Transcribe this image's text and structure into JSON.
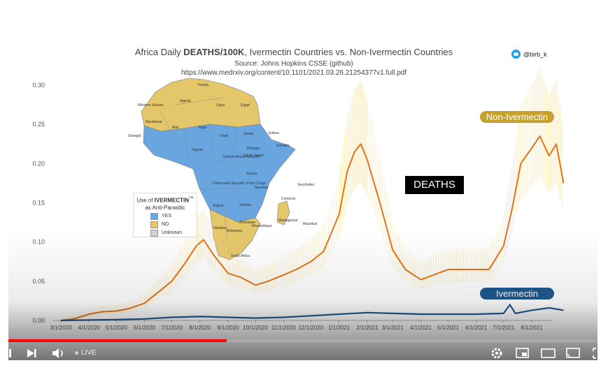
{
  "title_prefix": "Africa Daily ",
  "title_bold": "DEATHS/100K",
  "title_suffix": ", Ivermectin Countries vs. Non-Ivermectin Countries",
  "source": "Source: Johns Hopkins CSSE (github)",
  "url": "https://www.medrxiv.org/content/10.1101/2021.03.26.21254377v1.full.pdf",
  "handle": "@birb_k",
  "deaths_label": "DEATHS",
  "map_legend": {
    "title_prefix": "Use of ",
    "title_bold": "IVERMECTIN",
    "title_tm": "™",
    "title_line2": "as Anti-Parasitic",
    "items": [
      {
        "label": "YES",
        "color": "#69a6e0"
      },
      {
        "label": "NO",
        "color": "#e5c76b"
      },
      {
        "label": "Unknown",
        "color": "#d3d3d3"
      }
    ]
  },
  "map_labels": [
    "Tunisia",
    "Algeria",
    "Libya",
    "Egypt",
    "Western Sahara",
    "Mauritania",
    "Mali",
    "Niger",
    "Chad",
    "Sudan",
    "Eritrea",
    "Senegal",
    "Nigeria",
    "Ethiopia",
    "Somalia",
    "South Sudan",
    "Central African Republic",
    "Kenya",
    "Democratic Republic of the Congo",
    "Tanzania",
    "Angola",
    "Zambia",
    "Namibia",
    "Botswana",
    "Zimbabwe",
    "Mozambique",
    "Madagascar",
    "South Africa",
    "Seychelles",
    "Comoros",
    "Mauritius"
  ],
  "video": {
    "live_label": "LIVE",
    "progress": 0.37
  },
  "chart_data": {
    "type": "line",
    "title": "Africa Daily DEATHS/100K, Ivermectin Countries vs. Non-Ivermectin Countries",
    "xlabel": "",
    "ylabel": "",
    "ylim": [
      0,
      0.3
    ],
    "yticks": [
      "0.00",
      "0.05",
      "0.10",
      "0.15",
      "0.20",
      "0.25",
      "0.30"
    ],
    "xticks": [
      "3/1/2020",
      "4/1/2020",
      "5/1/2020",
      "6/1/2020",
      "7/1/2020",
      "8/1/2020",
      "9/1/2020",
      "10/1/2020",
      "11/1/2020",
      "12/1/2020",
      "1/1/2021",
      "2/1/2021",
      "3/1/2021",
      "4/1/2021",
      "5/1/2021",
      "6/1/2021",
      "7/1/2021",
      "8/1/2021"
    ],
    "grid": false,
    "series": [
      {
        "name": "Non-Ivermectin",
        "color": "#e3741a",
        "values": [
          [
            "3/1/2020",
            0.0
          ],
          [
            "3/15/2020",
            0.002
          ],
          [
            "4/1/2020",
            0.008
          ],
          [
            "4/15/2020",
            0.011
          ],
          [
            "5/1/2020",
            0.012
          ],
          [
            "5/15/2020",
            0.015
          ],
          [
            "6/1/2020",
            0.022
          ],
          [
            "6/15/2020",
            0.035
          ],
          [
            "7/1/2020",
            0.05
          ],
          [
            "7/15/2020",
            0.072
          ],
          [
            "7/28/2020",
            0.095
          ],
          [
            "8/5/2020",
            0.103
          ],
          [
            "8/15/2020",
            0.085
          ],
          [
            "9/1/2020",
            0.06
          ],
          [
            "9/15/2020",
            0.055
          ],
          [
            "10/1/2020",
            0.045
          ],
          [
            "10/15/2020",
            0.05
          ],
          [
            "11/1/2020",
            0.058
          ],
          [
            "11/15/2020",
            0.065
          ],
          [
            "12/1/2020",
            0.075
          ],
          [
            "12/15/2020",
            0.088
          ],
          [
            "1/1/2021",
            0.135
          ],
          [
            "1/10/2021",
            0.19
          ],
          [
            "1/18/2021",
            0.215
          ],
          [
            "1/25/2021",
            0.225
          ],
          [
            "2/1/2021",
            0.205
          ],
          [
            "2/15/2021",
            0.15
          ],
          [
            "3/1/2021",
            0.09
          ],
          [
            "3/15/2021",
            0.065
          ],
          [
            "4/1/2021",
            0.052
          ],
          [
            "4/15/2021",
            0.058
          ],
          [
            "5/1/2021",
            0.065
          ],
          [
            "5/15/2021",
            0.065
          ],
          [
            "6/1/2021",
            0.065
          ],
          [
            "6/15/2021",
            0.065
          ],
          [
            "7/1/2021",
            0.095
          ],
          [
            "7/10/2021",
            0.14
          ],
          [
            "7/20/2021",
            0.2
          ],
          [
            "8/1/2021",
            0.22
          ],
          [
            "8/10/2021",
            0.235
          ],
          [
            "8/20/2021",
            0.21
          ],
          [
            "8/28/2021",
            0.225
          ],
          [
            "9/5/2021",
            0.175
          ]
        ]
      },
      {
        "name": "Ivermectin",
        "color": "#1f5a8f",
        "values": [
          [
            "3/1/2020",
            0.0
          ],
          [
            "4/1/2020",
            0.0005
          ],
          [
            "5/1/2020",
            0.001
          ],
          [
            "6/1/2020",
            0.002
          ],
          [
            "7/1/2020",
            0.004
          ],
          [
            "8/1/2020",
            0.005
          ],
          [
            "9/1/2020",
            0.004
          ],
          [
            "10/1/2020",
            0.003
          ],
          [
            "11/1/2020",
            0.004
          ],
          [
            "12/1/2020",
            0.006
          ],
          [
            "1/1/2021",
            0.008
          ],
          [
            "2/1/2021",
            0.01
          ],
          [
            "3/1/2021",
            0.009
          ],
          [
            "4/1/2021",
            0.008
          ],
          [
            "5/1/2021",
            0.008
          ],
          [
            "6/1/2021",
            0.008
          ],
          [
            "7/1/2021",
            0.009
          ],
          [
            "7/8/2021",
            0.02
          ],
          [
            "7/14/2021",
            0.009
          ],
          [
            "8/1/2021",
            0.013
          ],
          [
            "8/20/2021",
            0.016
          ],
          [
            "9/5/2021",
            0.013
          ]
        ]
      }
    ]
  }
}
